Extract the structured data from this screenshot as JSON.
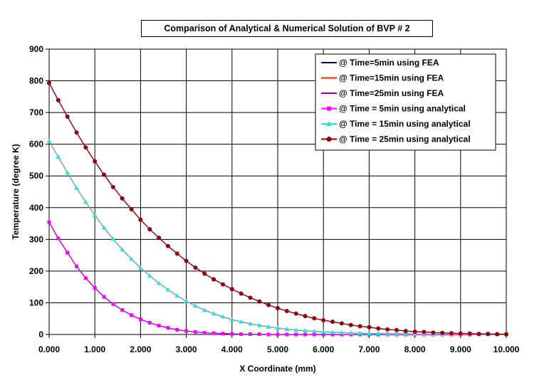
{
  "chart_data": {
    "type": "line",
    "title": "Comparison of Analytical & Numerical Solution of BVP # 2",
    "xlabel": "X Coordinate (mm)",
    "ylabel": "Temperature (degree K)",
    "xlim": [
      0,
      10
    ],
    "ylim": [
      0,
      900
    ],
    "x_ticks": [
      "0.000",
      "1.000",
      "2.000",
      "3.000",
      "4.000",
      "5.000",
      "6.000",
      "7.000",
      "8.000",
      "9.000",
      "10.000"
    ],
    "y_ticks": [
      "0",
      "100",
      "200",
      "300",
      "400",
      "500",
      "600",
      "700",
      "800",
      "900"
    ],
    "grid": true,
    "legend_position": "top-right",
    "colors": {
      "fea_5": "#000066",
      "fea_15": "#ff2200",
      "fea_25": "#880099",
      "ana_5": "#ff00ff",
      "ana_15": "#33dddd",
      "ana_25": "#8b0000"
    },
    "series": [
      {
        "name": "@ Time=5min using FEA",
        "style": "line",
        "color": "#000066",
        "x": [
          0,
          0.2,
          0.4,
          0.6,
          0.8,
          1,
          1.2,
          1.4,
          1.6,
          1.8,
          2,
          2.2,
          2.4,
          2.6,
          2.8,
          3,
          3.2,
          3.4,
          3.6,
          3.8,
          4,
          4.2,
          4.4,
          4.6,
          4.8,
          5,
          5.2,
          5.4,
          5.6,
          5.8,
          6,
          6.2,
          6.4,
          6.6,
          6.8,
          7,
          7.2,
          7.4,
          7.6,
          7.8,
          8,
          8.2,
          8.4,
          8.6,
          8.8,
          9,
          9.2,
          9.4,
          9.6,
          9.8,
          10
        ],
        "y": [
          354,
          303,
          258,
          215,
          178,
          147,
          119,
          96,
          77,
          61,
          48,
          37,
          28,
          21,
          15,
          11,
          8,
          5,
          4,
          3,
          2,
          1,
          1,
          1,
          0,
          0,
          0,
          0,
          0,
          0,
          0,
          0,
          0,
          0,
          0,
          0,
          0,
          0,
          0,
          0,
          0,
          0,
          0,
          0,
          0,
          0,
          0,
          0,
          0,
          0,
          0
        ]
      },
      {
        "name": "@ Time=15min using FEA",
        "style": "line",
        "color": "#ff2200",
        "x": [
          0,
          0.2,
          0.4,
          0.6,
          0.8,
          1,
          1.2,
          1.4,
          1.6,
          1.8,
          2,
          2.2,
          2.4,
          2.6,
          2.8,
          3,
          3.2,
          3.4,
          3.6,
          3.8,
          4,
          4.2,
          4.4,
          4.6,
          4.8,
          5,
          5.2,
          5.4,
          5.6,
          5.8,
          6,
          6.2,
          6.4,
          6.6,
          6.8,
          7,
          7.2,
          7.4,
          7.6,
          7.8,
          8,
          8.2,
          8.4,
          8.6,
          8.8,
          9,
          9.2,
          9.4,
          9.6,
          9.8,
          10
        ],
        "y": [
          610,
          560,
          510,
          462,
          418,
          376,
          337,
          301,
          268,
          238,
          210,
          185,
          162,
          141,
          122,
          105,
          90,
          77,
          66,
          56,
          47,
          40,
          34,
          29,
          24,
          20,
          17,
          14,
          12,
          10,
          8,
          7,
          6,
          5,
          4,
          3,
          3,
          2,
          2,
          2,
          1,
          1,
          1,
          1,
          1,
          1,
          1,
          0,
          0,
          0,
          0
        ]
      },
      {
        "name": "@ Time=25min using FEA",
        "style": "line",
        "color": "#880099",
        "x": [
          0,
          0.2,
          0.4,
          0.6,
          0.8,
          1,
          1.2,
          1.4,
          1.6,
          1.8,
          2,
          2.2,
          2.4,
          2.6,
          2.8,
          3,
          3.2,
          3.4,
          3.6,
          3.8,
          4,
          4.2,
          4.4,
          4.6,
          4.8,
          5,
          5.2,
          5.4,
          5.6,
          5.8,
          6,
          6.2,
          6.4,
          6.6,
          6.8,
          7,
          7.2,
          7.4,
          7.6,
          7.8,
          8,
          8.2,
          8.4,
          8.6,
          8.8,
          9,
          9.2,
          9.4,
          9.6,
          9.8,
          10
        ],
        "y": [
          793,
          739,
          687,
          637,
          590,
          546,
          504,
          465,
          429,
          395,
          362,
          332,
          305,
          279,
          255,
          232,
          211,
          192,
          174,
          158,
          143,
          129,
          116,
          104,
          93,
          83,
          74,
          66,
          58,
          51,
          45,
          40,
          35,
          30,
          26,
          23,
          19,
          16,
          14,
          11,
          9,
          8,
          6,
          5,
          4,
          3,
          3,
          2,
          2,
          1,
          1
        ]
      },
      {
        "name": "@ Time = 5min using analytical",
        "style": "square-markers",
        "color": "#ff00ff",
        "x": [
          0,
          0.2,
          0.4,
          0.6,
          0.8,
          1,
          1.2,
          1.4,
          1.6,
          1.8,
          2,
          2.2,
          2.4,
          2.6,
          2.8,
          3,
          3.2,
          3.4,
          3.6,
          3.8,
          4,
          4.2,
          4.4,
          4.6,
          4.8,
          5,
          5.2,
          5.4,
          5.6,
          5.8,
          6,
          6.2,
          6.4,
          6.6,
          6.8,
          7,
          7.2,
          7.4,
          7.6,
          7.8,
          8,
          8.2,
          8.4,
          8.6,
          8.8,
          9,
          9.2,
          9.4,
          9.6,
          9.8,
          10
        ],
        "y": [
          354,
          303,
          258,
          215,
          178,
          147,
          119,
          96,
          77,
          61,
          48,
          37,
          28,
          21,
          15,
          11,
          8,
          5,
          4,
          3,
          2,
          1,
          1,
          1,
          0,
          0,
          0,
          0,
          0,
          0,
          0,
          0,
          0,
          0,
          0,
          0,
          0,
          0,
          0,
          0,
          0,
          0,
          0,
          0,
          0,
          0,
          0,
          0,
          0,
          0,
          0
        ]
      },
      {
        "name": "@ Time = 15min using analytical",
        "style": "triangle-markers",
        "color": "#33dddd",
        "x": [
          0,
          0.2,
          0.4,
          0.6,
          0.8,
          1,
          1.2,
          1.4,
          1.6,
          1.8,
          2,
          2.2,
          2.4,
          2.6,
          2.8,
          3,
          3.2,
          3.4,
          3.6,
          3.8,
          4,
          4.2,
          4.4,
          4.6,
          4.8,
          5,
          5.2,
          5.4,
          5.6,
          5.8,
          6,
          6.2,
          6.4,
          6.6,
          6.8,
          7,
          7.2,
          7.4,
          7.6,
          7.8,
          8,
          8.2,
          8.4,
          8.6,
          8.8,
          9,
          9.2,
          9.4,
          9.6,
          9.8,
          10
        ],
        "y": [
          610,
          560,
          510,
          462,
          418,
          376,
          337,
          301,
          268,
          238,
          210,
          185,
          162,
          141,
          122,
          105,
          90,
          77,
          66,
          56,
          47,
          40,
          34,
          29,
          24,
          20,
          17,
          14,
          12,
          10,
          8,
          7,
          6,
          5,
          4,
          3,
          3,
          2,
          2,
          2,
          1,
          1,
          1,
          1,
          1,
          1,
          1,
          0,
          0,
          0,
          0
        ]
      },
      {
        "name": "@ Time = 25min using analytical",
        "style": "circle-markers",
        "color": "#8b0000",
        "x": [
          0,
          0.2,
          0.4,
          0.6,
          0.8,
          1,
          1.2,
          1.4,
          1.6,
          1.8,
          2,
          2.2,
          2.4,
          2.6,
          2.8,
          3,
          3.2,
          3.4,
          3.6,
          3.8,
          4,
          4.2,
          4.4,
          4.6,
          4.8,
          5,
          5.2,
          5.4,
          5.6,
          5.8,
          6,
          6.2,
          6.4,
          6.6,
          6.8,
          7,
          7.2,
          7.4,
          7.6,
          7.8,
          8,
          8.2,
          8.4,
          8.6,
          8.8,
          9,
          9.2,
          9.4,
          9.6,
          9.8,
          10
        ],
        "y": [
          793,
          739,
          687,
          637,
          590,
          546,
          504,
          465,
          429,
          395,
          362,
          332,
          305,
          279,
          255,
          232,
          211,
          192,
          174,
          158,
          143,
          129,
          116,
          104,
          93,
          83,
          74,
          66,
          58,
          51,
          45,
          40,
          35,
          30,
          26,
          23,
          19,
          16,
          14,
          11,
          9,
          8,
          6,
          5,
          4,
          3,
          3,
          2,
          2,
          1,
          1
        ]
      }
    ]
  }
}
